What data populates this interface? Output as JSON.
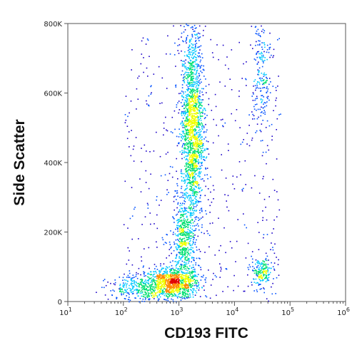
{
  "chart_data": {
    "type": "scatter",
    "title": "",
    "xlabel": "CD193 FITC",
    "ylabel": "Side Scatter",
    "x_scale": "log",
    "xlim": [
      10,
      1000000
    ],
    "ylim": [
      0,
      800000
    ],
    "x_ticks": [
      {
        "value": 10,
        "base": "10",
        "exp": "1"
      },
      {
        "value": 100,
        "base": "10",
        "exp": "2"
      },
      {
        "value": 1000,
        "base": "10",
        "exp": "3"
      },
      {
        "value": 10000,
        "base": "10",
        "exp": "4"
      },
      {
        "value": 100000,
        "base": "10",
        "exp": "5"
      },
      {
        "value": 1000000,
        "base": "10",
        "exp": "6"
      }
    ],
    "y_ticks": [
      {
        "value": 0,
        "label": "0"
      },
      {
        "value": 200000,
        "label": "200K"
      },
      {
        "value": 400000,
        "label": "400K"
      },
      {
        "value": 600000,
        "label": "600K"
      },
      {
        "value": 800000,
        "label": "800K"
      }
    ],
    "grid": false,
    "legend": "none",
    "colormap": [
      "#1a00c8",
      "#0050ff",
      "#00c8ff",
      "#00e070",
      "#f0ff00",
      "#ff8c00",
      "#e00000"
    ],
    "populations": [
      {
        "x_center": 750,
        "y_center": 55000,
        "x_spread_decades": 0.25,
        "y_spread": 22000,
        "weight": 900
      },
      {
        "x_center": 1200,
        "y_center": 170000,
        "x_spread_decades": 0.1,
        "y_spread": 60000,
        "weight": 500
      },
      {
        "x_center": 1700,
        "y_center": 500000,
        "x_spread_decades": 0.1,
        "y_spread": 140000,
        "weight": 1700
      },
      {
        "x_center": 30000,
        "y_center": 85000,
        "x_spread_decades": 0.1,
        "y_spread": 20000,
        "weight": 180
      },
      {
        "x_center": 30000,
        "y_center": 650000,
        "x_spread_decades": 0.08,
        "y_spread": 120000,
        "weight": 220
      },
      {
        "x_center": 250,
        "y_center": 40000,
        "x_spread_decades": 0.35,
        "y_spread": 18000,
        "weight": 350
      }
    ]
  }
}
